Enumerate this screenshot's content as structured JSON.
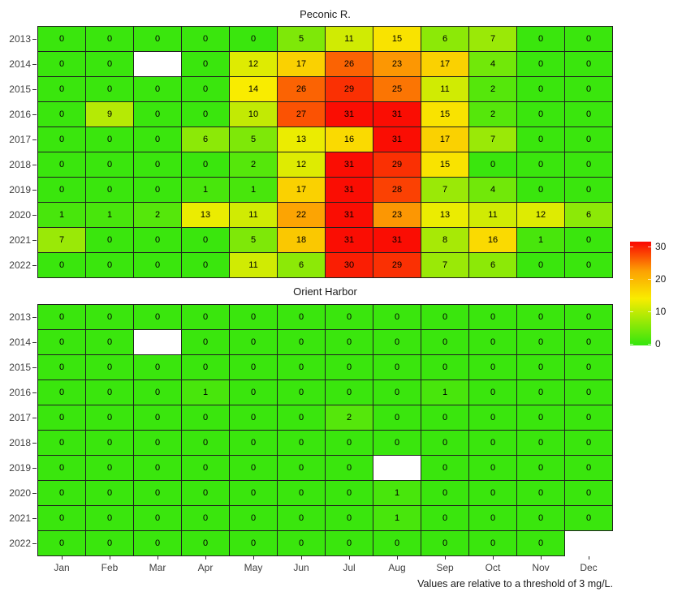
{
  "chart_data": [
    {
      "type": "heatmap",
      "title": "Peconic R.",
      "x": [
        "Jan",
        "Feb",
        "Mar",
        "Apr",
        "May",
        "Jun",
        "Jul",
        "Aug",
        "Sep",
        "Oct",
        "Nov",
        "Dec"
      ],
      "y": [
        "2013",
        "2014",
        "2015",
        "2016",
        "2017",
        "2018",
        "2019",
        "2020",
        "2021",
        "2022"
      ],
      "values": [
        [
          0,
          0,
          0,
          0,
          0,
          5,
          11,
          15,
          6,
          7,
          0,
          0
        ],
        [
          0,
          0,
          null,
          0,
          12,
          17,
          26,
          23,
          17,
          4,
          0,
          0
        ],
        [
          0,
          0,
          0,
          0,
          14,
          26,
          29,
          25,
          11,
          2,
          0,
          0
        ],
        [
          0,
          9,
          0,
          0,
          10,
          27,
          31,
          31,
          15,
          2,
          0,
          0
        ],
        [
          0,
          0,
          0,
          6,
          5,
          13,
          16,
          31,
          17,
          7,
          0,
          0
        ],
        [
          0,
          0,
          0,
          0,
          2,
          12,
          31,
          29,
          15,
          0,
          0,
          0
        ],
        [
          0,
          0,
          0,
          1,
          1,
          17,
          31,
          28,
          7,
          4,
          0,
          0
        ],
        [
          1,
          1,
          2,
          13,
          11,
          22,
          31,
          23,
          13,
          11,
          12,
          6
        ],
        [
          7,
          0,
          0,
          0,
          5,
          18,
          31,
          31,
          8,
          16,
          1,
          0
        ],
        [
          0,
          0,
          0,
          0,
          11,
          6,
          30,
          29,
          7,
          6,
          0,
          0
        ]
      ],
      "xlabel": "",
      "ylabel": "",
      "show_x_labels": false,
      "grid": false
    },
    {
      "type": "heatmap",
      "title": "Orient Harbor",
      "x": [
        "Jan",
        "Feb",
        "Mar",
        "Apr",
        "May",
        "Jun",
        "Jul",
        "Aug",
        "Sep",
        "Oct",
        "Nov",
        "Dec"
      ],
      "y": [
        "2013",
        "2014",
        "2015",
        "2016",
        "2017",
        "2018",
        "2019",
        "2020",
        "2021",
        "2022"
      ],
      "values": [
        [
          0,
          0,
          0,
          0,
          0,
          0,
          0,
          0,
          0,
          0,
          0,
          0
        ],
        [
          0,
          0,
          null,
          0,
          0,
          0,
          0,
          0,
          0,
          0,
          0,
          0
        ],
        [
          0,
          0,
          0,
          0,
          0,
          0,
          0,
          0,
          0,
          0,
          0,
          0
        ],
        [
          0,
          0,
          0,
          1,
          0,
          0,
          0,
          0,
          1,
          0,
          0,
          0
        ],
        [
          0,
          0,
          0,
          0,
          0,
          0,
          2,
          0,
          0,
          0,
          0,
          0
        ],
        [
          0,
          0,
          0,
          0,
          0,
          0,
          0,
          0,
          0,
          0,
          0,
          0
        ],
        [
          0,
          0,
          0,
          0,
          0,
          0,
          0,
          null,
          0,
          0,
          0,
          0
        ],
        [
          0,
          0,
          0,
          0,
          0,
          0,
          0,
          1,
          0,
          0,
          0,
          0
        ],
        [
          0,
          0,
          0,
          0,
          0,
          0,
          0,
          1,
          0,
          0,
          0,
          0
        ],
        [
          0,
          0,
          0,
          0,
          0,
          0,
          0,
          0,
          0,
          0,
          0,
          null
        ]
      ],
      "xlabel": "",
      "ylabel": "",
      "show_x_labels": true,
      "grid": false
    }
  ],
  "legend": {
    "position": "right",
    "ticks": [
      30,
      20,
      10,
      0
    ],
    "domain": [
      0,
      31
    ]
  },
  "caption": "Values are relative to a threshold of 3 mg/L.",
  "colors": {
    "scale_stops": [
      {
        "value": 0,
        "color": "#3AE60D"
      },
      {
        "value": 14,
        "color": "#F9EC00"
      },
      {
        "value": 22.5,
        "color": "#FCA003"
      },
      {
        "value": 31,
        "color": "#FA0D03"
      }
    ],
    "na_cell": "#FFFFFF",
    "tile_border": "#1F1F1F",
    "axis_text": "#404040",
    "value_text": "#000000"
  }
}
